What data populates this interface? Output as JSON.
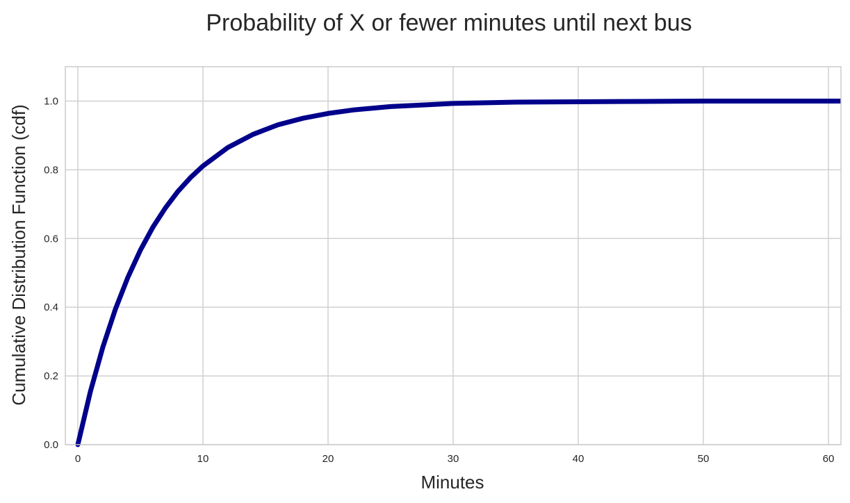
{
  "chart_data": {
    "type": "line",
    "title": "Probability of X or fewer minutes until next bus",
    "xlabel": "Minutes",
    "ylabel": "Cumulative Distribution Function (cdf)",
    "xlim": [
      -1,
      61
    ],
    "ylim": [
      0,
      1.1
    ],
    "x_ticks": [
      0,
      10,
      20,
      30,
      40,
      50,
      60
    ],
    "x_tick_labels": [
      "0",
      "10",
      "20",
      "30",
      "40",
      "50",
      "60"
    ],
    "y_ticks": [
      0.0,
      0.2,
      0.4,
      0.6,
      0.8,
      1.0
    ],
    "y_tick_labels": [
      "0.0",
      "0.2",
      "0.4",
      "0.6",
      "0.8",
      "1.0"
    ],
    "grid": true,
    "series": [
      {
        "color": "#00008b",
        "x": [
          0,
          1,
          2,
          3,
          4,
          5,
          6,
          7,
          8,
          9,
          10,
          12,
          14,
          16,
          18,
          20,
          22,
          25,
          30,
          35,
          40,
          45,
          50,
          55,
          61
        ],
        "y": [
          0.0,
          0.154,
          0.284,
          0.394,
          0.487,
          0.566,
          0.633,
          0.689,
          0.737,
          0.777,
          0.811,
          0.865,
          0.903,
          0.931,
          0.95,
          0.964,
          0.974,
          0.984,
          0.993,
          0.997,
          0.998,
          0.999,
          1.0,
          1.0,
          1.0
        ]
      }
    ]
  },
  "colors": {
    "line": "#00008b",
    "grid": "#d0d0d0",
    "frame": "#cccccc",
    "text": "#262626"
  }
}
